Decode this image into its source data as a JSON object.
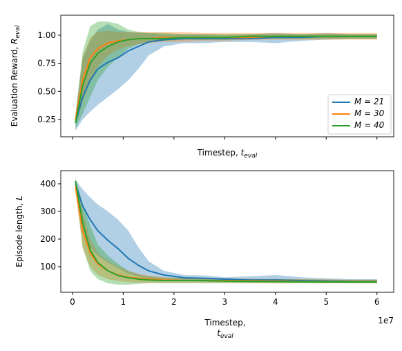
{
  "chart_data": [
    {
      "type": "line",
      "ylabel": {
        "text": "Evaluation Reward, ",
        "var": "R",
        "sub": "eval"
      },
      "xlabel": {
        "text": "Timestep, ",
        "var": "t",
        "sub": "eval"
      },
      "x": [
        0.06,
        0.2,
        0.35,
        0.5,
        0.7,
        0.9,
        1.1,
        1.3,
        1.5,
        1.8,
        2.2,
        2.6,
        3,
        3.5,
        4,
        4.5,
        5,
        5.5,
        6
      ],
      "xlim": [
        -0.23,
        6.33
      ],
      "xticks": [
        0,
        1,
        2,
        3,
        4,
        5,
        6
      ],
      "xtick_labels": false,
      "ylim": [
        0.096,
        1.178
      ],
      "yticks": [
        0.25,
        {
          "value": 0.5,
          "label": "0.50"
        },
        0.75,
        {
          "value": 1.0,
          "label": "1.00"
        }
      ],
      "legend": "lower right",
      "band_opacity": 0.35,
      "series": [
        {
          "name": "M = 21",
          "color": "#1f77b4",
          "values": [
            0.22,
            0.45,
            0.6,
            0.7,
            0.76,
            0.8,
            0.86,
            0.9,
            0.94,
            0.96,
            0.97,
            0.97,
            0.97,
            0.97,
            0.98,
            0.98,
            0.99,
            0.99,
            0.99
          ],
          "lower": [
            0.15,
            0.25,
            0.32,
            0.38,
            0.45,
            0.52,
            0.6,
            0.7,
            0.82,
            0.9,
            0.93,
            0.93,
            0.94,
            0.94,
            0.93,
            0.95,
            0.96,
            0.97,
            0.97
          ],
          "upper": [
            0.3,
            0.8,
            0.95,
            1.05,
            1.1,
            1.05,
            1.03,
            1.02,
            1.02,
            1.01,
            1.01,
            1.01,
            1.0,
            1.01,
            1.02,
            1.01,
            1.02,
            1.01,
            1.01
          ]
        },
        {
          "name": "M = 30",
          "color": "#ff7f0e",
          "values": [
            0.25,
            0.6,
            0.8,
            0.88,
            0.93,
            0.95,
            0.96,
            0.97,
            0.97,
            0.98,
            0.98,
            0.98,
            0.98,
            0.98,
            0.99,
            0.99,
            0.99,
            0.99,
            0.99
          ],
          "lower": [
            0.2,
            0.4,
            0.6,
            0.72,
            0.82,
            0.87,
            0.9,
            0.92,
            0.93,
            0.94,
            0.94,
            0.95,
            0.95,
            0.96,
            0.96,
            0.96,
            0.96,
            0.96,
            0.96
          ],
          "upper": [
            0.3,
            0.8,
            0.98,
            1.03,
            1.04,
            1.03,
            1.03,
            1.03,
            1.03,
            1.03,
            1.03,
            1.02,
            1.02,
            1.02,
            1.02,
            1.02,
            1.02,
            1.02,
            1.02
          ]
        },
        {
          "name": "M = 40",
          "color": "#2ca02c",
          "values": [
            0.22,
            0.55,
            0.75,
            0.84,
            0.9,
            0.94,
            0.96,
            0.97,
            0.97,
            0.97,
            0.98,
            0.98,
            0.98,
            0.99,
            0.99,
            0.99,
            0.99,
            0.99,
            0.99
          ],
          "lower": [
            0.17,
            0.3,
            0.45,
            0.6,
            0.72,
            0.8,
            0.88,
            0.92,
            0.94,
            0.95,
            0.96,
            0.96,
            0.96,
            0.97,
            0.97,
            0.97,
            0.97,
            0.97,
            0.97
          ],
          "upper": [
            0.28,
            0.85,
            1.08,
            1.12,
            1.12,
            1.1,
            1.05,
            1.03,
            1.02,
            1.02,
            1.01,
            1.01,
            1.01,
            1.01,
            1.01,
            1.01,
            1.01,
            1.01,
            1.01
          ]
        }
      ]
    },
    {
      "type": "line",
      "ylabel": {
        "text": "Episode length, ",
        "var": "L"
      },
      "xlabel": {
        "text": "Timestep,",
        "var": "t",
        "sub": "eval"
      },
      "xlabel_wrap": true,
      "offset_label": "1e7",
      "x": [
        0.06,
        0.2,
        0.35,
        0.5,
        0.7,
        0.9,
        1.1,
        1.3,
        1.5,
        1.8,
        2.2,
        2.6,
        3,
        3.5,
        4,
        4.5,
        5,
        5.5,
        6
      ],
      "xlim": [
        -0.23,
        6.33
      ],
      "xticks": [
        0,
        1,
        2,
        3,
        4,
        5,
        6
      ],
      "xtick_labels": true,
      "ylim": [
        7.5,
        447.5
      ],
      "yticks": [
        100,
        200,
        300,
        400
      ],
      "band_opacity": 0.35,
      "series": [
        {
          "name": "M = 21",
          "color": "#1f77b4",
          "values": [
            400,
            320,
            270,
            230,
            195,
            165,
            130,
            105,
            85,
            70,
            60,
            58,
            55,
            52,
            52,
            50,
            48,
            47,
            47
          ],
          "lower": [
            380,
            230,
            170,
            140,
            115,
            95,
            75,
            65,
            58,
            52,
            48,
            46,
            45,
            44,
            44,
            42,
            42,
            41,
            41
          ],
          "upper": [
            415,
            380,
            350,
            325,
            300,
            270,
            230,
            170,
            120,
            85,
            70,
            68,
            62,
            65,
            70,
            62,
            58,
            55,
            55
          ]
        },
        {
          "name": "M = 30",
          "color": "#ff7f0e",
          "values": [
            390,
            230,
            150,
            110,
            85,
            70,
            62,
            58,
            55,
            52,
            50,
            50,
            50,
            49,
            48,
            47,
            46,
            46,
            46
          ],
          "lower": [
            370,
            170,
            100,
            70,
            55,
            48,
            44,
            42,
            42,
            42,
            42,
            42,
            42,
            41,
            40,
            40,
            40,
            40,
            40
          ],
          "upper": [
            410,
            300,
            200,
            150,
            120,
            100,
            85,
            75,
            68,
            62,
            58,
            58,
            58,
            57,
            56,
            55,
            54,
            53,
            53
          ]
        },
        {
          "name": "M = 40",
          "color": "#2ca02c",
          "values": [
            410,
            260,
            160,
            115,
            85,
            68,
            60,
            55,
            52,
            50,
            50,
            50,
            48,
            47,
            46,
            46,
            45,
            45,
            45
          ],
          "lower": [
            390,
            170,
            85,
            55,
            40,
            35,
            35,
            38,
            40,
            40,
            40,
            40,
            40,
            40,
            40,
            40,
            40,
            40,
            40
          ],
          "upper": [
            420,
            330,
            250,
            180,
            140,
            110,
            85,
            72,
            65,
            60,
            60,
            58,
            56,
            55,
            55,
            54,
            53,
            52,
            52
          ]
        }
      ]
    }
  ]
}
